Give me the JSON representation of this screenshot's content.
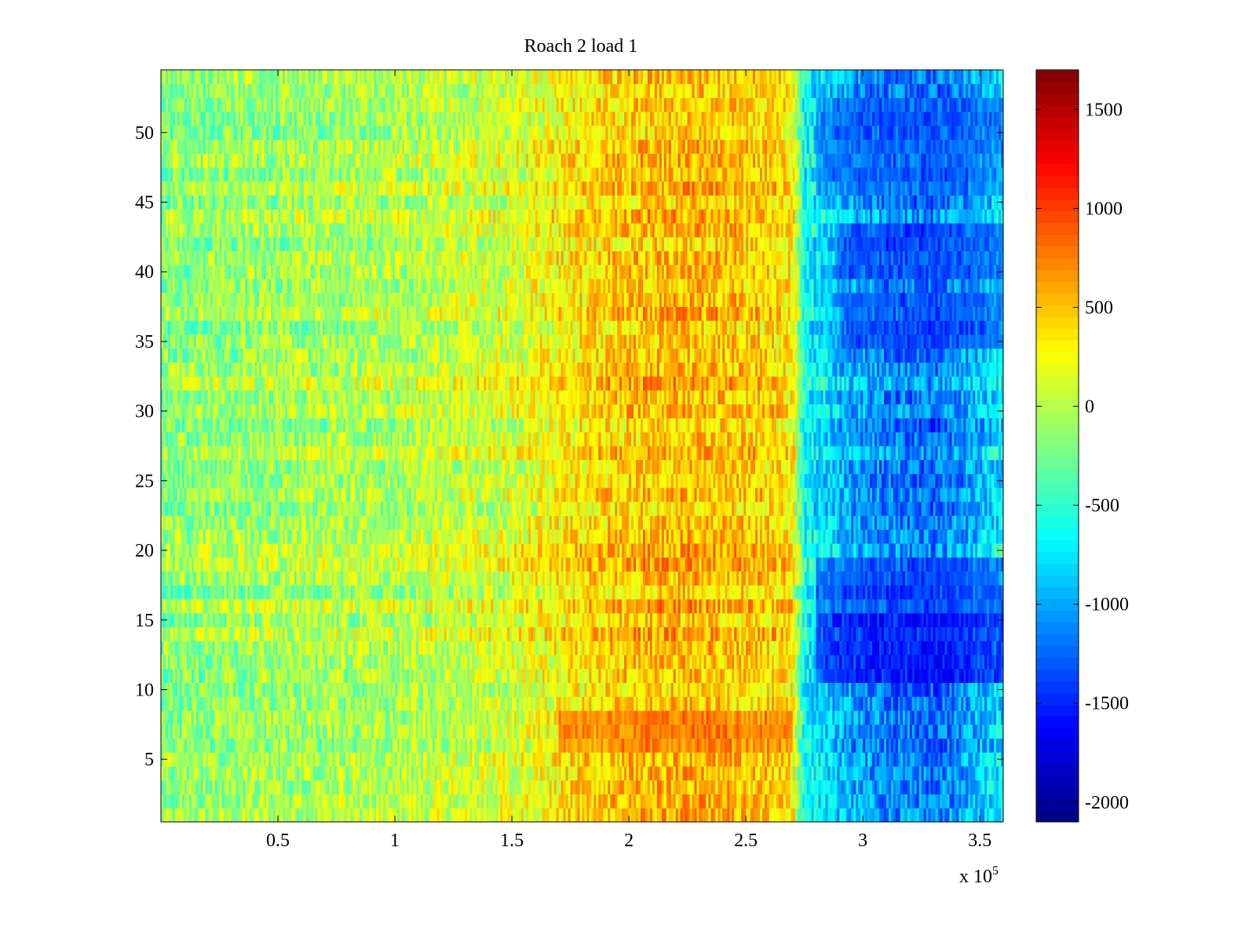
{
  "chart_data": {
    "type": "heatmap",
    "title": "Roach 2 load 1",
    "xlabel": "",
    "ylabel": "",
    "x_multiplier_label": {
      "prefix": "x 10",
      "exponent": "5"
    },
    "xlim": [
      0,
      360000
    ],
    "ylim": [
      0.5,
      54.5
    ],
    "x_ticks": [
      50000,
      100000,
      150000,
      200000,
      250000,
      300000,
      350000
    ],
    "x_tick_labels": [
      "0.5",
      "1",
      "1.5",
      "2",
      "2.5",
      "3",
      "3.5"
    ],
    "y_ticks": [
      5,
      10,
      15,
      20,
      25,
      30,
      35,
      40,
      45,
      50
    ],
    "y_tick_labels": [
      "5",
      "10",
      "15",
      "20",
      "25",
      "30",
      "35",
      "40",
      "45",
      "50"
    ],
    "n_rows": 54,
    "colormap": "jet",
    "clim": [
      -2100,
      1700
    ],
    "colorbar": {
      "ticks": [
        -2000,
        -1500,
        -1000,
        -500,
        0,
        500,
        1000,
        1500
      ],
      "tick_labels": [
        "-2000",
        "-1500",
        "-1000",
        "-500",
        "0",
        "500",
        "1000",
        "1500"
      ]
    },
    "column_profile": {
      "x": [
        0,
        50000,
        100000,
        150000,
        180000,
        200000,
        230000,
        260000,
        270000,
        275000,
        290000,
        300000,
        330000,
        345000,
        360000
      ],
      "value": [
        -150,
        -50,
        0,
        150,
        400,
        500,
        550,
        450,
        350,
        -600,
        -900,
        -1050,
        -1200,
        -1000,
        -700
      ]
    },
    "notable_regions": [
      {
        "label": "hot band",
        "rows": [
          6,
          8
        ],
        "x_range": [
          170000,
          270000
        ],
        "value": 1000
      },
      {
        "label": "cold patch",
        "rows": [
          11,
          15
        ],
        "x_range": [
          280000,
          360000
        ],
        "value": -1900
      },
      {
        "label": "cold patch",
        "rows": [
          16,
          19
        ],
        "x_range": [
          280000,
          360000
        ],
        "value": -1600
      },
      {
        "label": "cold patch",
        "rows": [
          35,
          38
        ],
        "x_range": [
          290000,
          360000
        ],
        "value": -1500
      },
      {
        "label": "cold patch",
        "rows": [
          40,
          43
        ],
        "x_range": [
          290000,
          360000
        ],
        "value": -1500
      },
      {
        "label": "cold patch",
        "rows": [
          46,
          52
        ],
        "x_range": [
          280000,
          360000
        ],
        "value": -1400
      }
    ]
  }
}
